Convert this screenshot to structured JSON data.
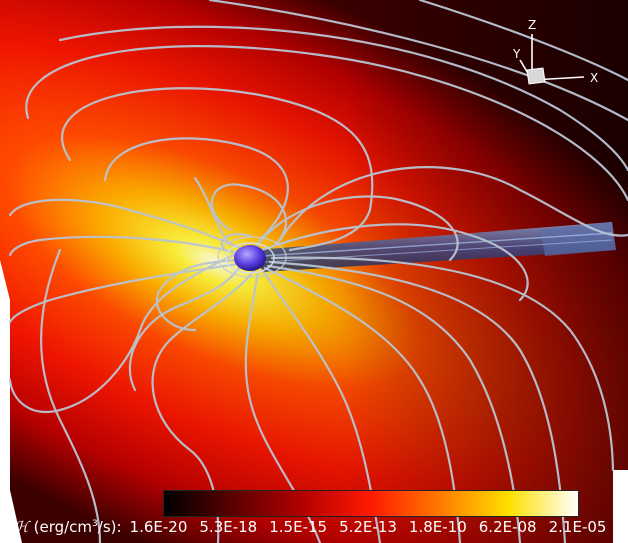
{
  "axes": {
    "z": "Z",
    "y": "Y",
    "x": "X"
  },
  "colorbar": {
    "symbol": "ℋ",
    "units_prefix": "(erg/cm",
    "units_sup": "3",
    "units_suffix": "/s):",
    "ticks": [
      "1.6E-20",
      "5.3E-18",
      "1.5E-15",
      "5.2E-13",
      "1.8E-10",
      "6.2E-08",
      "2.1E-05"
    ],
    "colors": [
      "#000000",
      "#5a0000",
      "#b30000",
      "#ff1a00",
      "#ff7a00",
      "#ffe000",
      "#ffffff"
    ]
  }
}
